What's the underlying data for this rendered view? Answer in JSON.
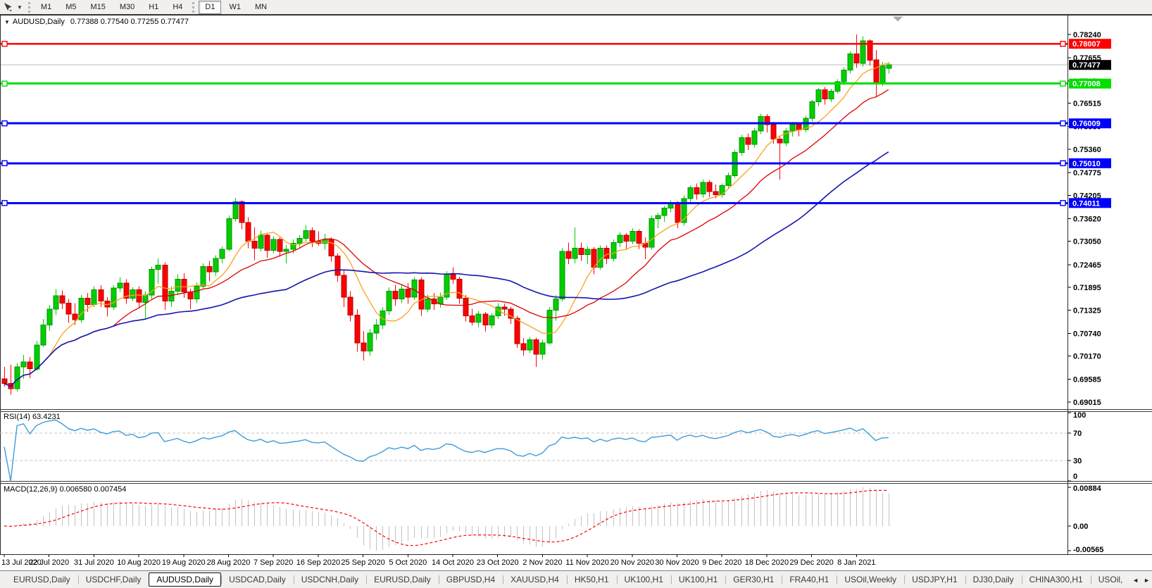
{
  "toolbar": {
    "tool_icon": "cursor-arrow",
    "dropdown_caret_icon": "▼",
    "timeframes": [
      "M1",
      "M5",
      "M15",
      "M30",
      "H1",
      "H4",
      "D1",
      "W1",
      "MN"
    ],
    "active_timeframe": "D1"
  },
  "chart_header": {
    "collapse_caret_icon": "▼",
    "symbol": "AUDUSD,Daily",
    "open": "0.77388",
    "high": "0.77540",
    "low": "0.77255",
    "close": "0.77477"
  },
  "price_axis": {
    "ticks": [
      "0.78240",
      "0.77655",
      "0.77070",
      "0.76515",
      "0.75930",
      "0.75360",
      "0.74775",
      "0.74205",
      "0.73620",
      "0.73050",
      "0.72465",
      "0.71895",
      "0.71325",
      "0.70740",
      "0.70170",
      "0.69585",
      "0.69015"
    ],
    "current_price": "0.77477",
    "current_price_badge_color": "#000000"
  },
  "hlines": [
    {
      "label": "0.78007",
      "value": 0.78007,
      "color": "#FF0000",
      "width": 2.5
    },
    {
      "label": "0.77008",
      "value": 0.77008,
      "color": "#00DF00",
      "width": 3
    },
    {
      "label": "0.76009",
      "value": 0.76009,
      "color": "#0000FF",
      "width": 3
    },
    {
      "label": "0.75010",
      "value": 0.7501,
      "color": "#0000FF",
      "width": 3
    },
    {
      "label": "0.74011",
      "value": 0.74011,
      "color": "#0000FF",
      "width": 3
    }
  ],
  "rsi_panel": {
    "name": "RSI(14)",
    "value": "63.4231",
    "line_color": "#3E9BDB",
    "levels": [
      70,
      30
    ],
    "axis_ticks": [
      {
        "label": "100",
        "value": 100
      },
      {
        "label": "70",
        "value": 70
      },
      {
        "label": "30",
        "value": 30
      },
      {
        "label": "0",
        "value": 0
      }
    ]
  },
  "macd_panel": {
    "name": "MACD(12,26,9)",
    "value_main": "0.006580",
    "value_signal": "0.007454",
    "bar_color": "#C2C2C2",
    "signal_color": "#FF0000",
    "axis_ticks": [
      {
        "label": "0.00884",
        "value": 0.00884
      },
      {
        "label": "0.00",
        "value": 0
      },
      {
        "label": "-0.00565",
        "value": -0.00565
      }
    ]
  },
  "date_axis": [
    "13 Jul 2020",
    "22 Jul 2020",
    "31 Jul 2020",
    "10 Aug 2020",
    "19 Aug 2020",
    "28 Aug 2020",
    "7 Sep 2020",
    "16 Sep 2020",
    "25 Sep 2020",
    "5 Oct 2020",
    "14 Oct 2020",
    "23 Oct 2020",
    "2 Nov 2020",
    "11 Nov 2020",
    "20 Nov 2020",
    "30 Nov 2020",
    "9 Dec 2020",
    "18 Dec 2020",
    "29 Dec 2020",
    "8 Jan 2021"
  ],
  "tabs": {
    "items": [
      "EURUSD,Daily",
      "USDCHF,Daily",
      "AUDUSD,Daily",
      "USDCAD,Daily",
      "USDCNH,Daily",
      "EURUSD,Daily",
      "GBPUSD,H4",
      "XAUUSD,H4",
      "HK50,H1",
      "UK100,H1",
      "UK100,H1",
      "GER30,H1",
      "FRA40,H1",
      "USOil,Weekly",
      "USDJPY,H1",
      "DJ30,Daily",
      "CHINA300,H1",
      "USOil,"
    ],
    "active_index": 2,
    "scroll_left_icon": "◄",
    "scroll_right_icon": "►"
  },
  "chart_data": {
    "type": "candlestick",
    "title": "AUDUSD,Daily",
    "symbol": "AUDUSD",
    "timeframe": "Daily",
    "up_color": "#00CE00",
    "down_color": "#FF0000",
    "date_tick_step": 7,
    "ylim": [
      0.69015,
      0.7824
    ],
    "moving_averages": [
      {
        "name": "fast",
        "window": 8,
        "color": "#F9A21B"
      },
      {
        "name": "medium",
        "window": 18,
        "color": "#DD0000"
      },
      {
        "name": "slow",
        "window": 45,
        "color": "#1414AE"
      }
    ],
    "indicators": {
      "rsi_period": 14,
      "macd_params": [
        12,
        26,
        9
      ]
    },
    "candles": [
      [
        0.696,
        0.699,
        0.694,
        0.6948
      ],
      [
        0.6948,
        0.6995,
        0.692,
        0.6935
      ],
      [
        0.6935,
        0.7,
        0.6928,
        0.699
      ],
      [
        0.699,
        0.702,
        0.696,
        0.7002
      ],
      [
        0.7002,
        0.7015,
        0.6962,
        0.6985
      ],
      [
        0.6985,
        0.7055,
        0.698,
        0.7045
      ],
      [
        0.7045,
        0.711,
        0.704,
        0.7095
      ],
      [
        0.7095,
        0.7145,
        0.708,
        0.7135
      ],
      [
        0.7135,
        0.7185,
        0.712,
        0.7168
      ],
      [
        0.7168,
        0.7182,
        0.7135,
        0.715
      ],
      [
        0.715,
        0.716,
        0.71,
        0.7122
      ],
      [
        0.7122,
        0.715,
        0.7095,
        0.7108
      ],
      [
        0.7108,
        0.717,
        0.71,
        0.7162
      ],
      [
        0.7162,
        0.7175,
        0.7128,
        0.7146
      ],
      [
        0.7146,
        0.7192,
        0.714,
        0.7183
      ],
      [
        0.7183,
        0.7195,
        0.714,
        0.7155
      ],
      [
        0.7155,
        0.7165,
        0.7116,
        0.714
      ],
      [
        0.714,
        0.7195,
        0.7133,
        0.7188
      ],
      [
        0.7188,
        0.7215,
        0.7178,
        0.72
      ],
      [
        0.72,
        0.721,
        0.7148,
        0.7162
      ],
      [
        0.7162,
        0.719,
        0.7155,
        0.7183
      ],
      [
        0.7183,
        0.7192,
        0.7138,
        0.7152
      ],
      [
        0.7152,
        0.718,
        0.7108,
        0.717
      ],
      [
        0.717,
        0.7242,
        0.716,
        0.7235
      ],
      [
        0.7235,
        0.7262,
        0.7198,
        0.7245
      ],
      [
        0.7245,
        0.7252,
        0.7133,
        0.7155
      ],
      [
        0.7155,
        0.7192,
        0.714,
        0.718
      ],
      [
        0.718,
        0.7222,
        0.717,
        0.721
      ],
      [
        0.721,
        0.7225,
        0.7163,
        0.7178
      ],
      [
        0.7178,
        0.7186,
        0.7135,
        0.716
      ],
      [
        0.716,
        0.7202,
        0.715,
        0.7192
      ],
      [
        0.7192,
        0.725,
        0.7185,
        0.7242
      ],
      [
        0.7242,
        0.7256,
        0.7205,
        0.7228
      ],
      [
        0.7228,
        0.727,
        0.7218,
        0.7262
      ],
      [
        0.7262,
        0.7292,
        0.725,
        0.7285
      ],
      [
        0.7285,
        0.737,
        0.728,
        0.7362
      ],
      [
        0.7362,
        0.7414,
        0.7355,
        0.7404
      ],
      [
        0.7404,
        0.7408,
        0.7335,
        0.7352
      ],
      [
        0.7352,
        0.7365,
        0.7288,
        0.7305
      ],
      [
        0.7305,
        0.734,
        0.7258,
        0.7288
      ],
      [
        0.7288,
        0.7332,
        0.728,
        0.732
      ],
      [
        0.732,
        0.7325,
        0.7264,
        0.7282
      ],
      [
        0.7282,
        0.7318,
        0.7275,
        0.731
      ],
      [
        0.731,
        0.7315,
        0.7266,
        0.728
      ],
      [
        0.728,
        0.7296,
        0.725,
        0.7285
      ],
      [
        0.7285,
        0.731,
        0.7274,
        0.73
      ],
      [
        0.73,
        0.732,
        0.7288,
        0.7312
      ],
      [
        0.7312,
        0.7345,
        0.7304,
        0.7332
      ],
      [
        0.7332,
        0.734,
        0.729,
        0.7305
      ],
      [
        0.7305,
        0.733,
        0.7294,
        0.73
      ],
      [
        0.73,
        0.7324,
        0.7284,
        0.731
      ],
      [
        0.731,
        0.7315,
        0.7254,
        0.7268
      ],
      [
        0.7268,
        0.7275,
        0.7204,
        0.722
      ],
      [
        0.722,
        0.7235,
        0.714,
        0.7165
      ],
      [
        0.7165,
        0.718,
        0.7104,
        0.712
      ],
      [
        0.712,
        0.7135,
        0.7028,
        0.705
      ],
      [
        0.705,
        0.708,
        0.7006,
        0.703
      ],
      [
        0.703,
        0.7085,
        0.7018,
        0.7075
      ],
      [
        0.7075,
        0.711,
        0.7058,
        0.7095
      ],
      [
        0.7095,
        0.714,
        0.7084,
        0.713
      ],
      [
        0.713,
        0.719,
        0.712,
        0.718
      ],
      [
        0.718,
        0.7196,
        0.7144,
        0.716
      ],
      [
        0.716,
        0.7195,
        0.715,
        0.7185
      ],
      [
        0.7185,
        0.72,
        0.7148,
        0.7165
      ],
      [
        0.7165,
        0.7215,
        0.7158,
        0.7208
      ],
      [
        0.7208,
        0.7215,
        0.7118,
        0.7135
      ],
      [
        0.7135,
        0.7172,
        0.7128,
        0.716
      ],
      [
        0.716,
        0.7175,
        0.7133,
        0.7148
      ],
      [
        0.7148,
        0.7176,
        0.7138,
        0.7165
      ],
      [
        0.7165,
        0.723,
        0.7158,
        0.7222
      ],
      [
        0.7222,
        0.724,
        0.7198,
        0.721
      ],
      [
        0.721,
        0.7216,
        0.7148,
        0.7162
      ],
      [
        0.7162,
        0.717,
        0.7104,
        0.7118
      ],
      [
        0.7118,
        0.7136,
        0.7094,
        0.7102
      ],
      [
        0.7102,
        0.713,
        0.709,
        0.7122
      ],
      [
        0.7122,
        0.7128,
        0.7078,
        0.7095
      ],
      [
        0.7095,
        0.7125,
        0.7086,
        0.7118
      ],
      [
        0.7118,
        0.715,
        0.711,
        0.714
      ],
      [
        0.714,
        0.7149,
        0.7118,
        0.7135
      ],
      [
        0.7135,
        0.7141,
        0.7098,
        0.7112
      ],
      [
        0.7112,
        0.7118,
        0.7038,
        0.7048
      ],
      [
        0.7048,
        0.7062,
        0.7018,
        0.7032
      ],
      [
        0.7032,
        0.7065,
        0.7024,
        0.7058
      ],
      [
        0.7058,
        0.7063,
        0.699,
        0.7022
      ],
      [
        0.7022,
        0.7058,
        0.7008,
        0.705
      ],
      [
        0.705,
        0.714,
        0.7046,
        0.7132
      ],
      [
        0.7132,
        0.717,
        0.7106,
        0.716
      ],
      [
        0.716,
        0.7288,
        0.7154,
        0.728
      ],
      [
        0.728,
        0.7302,
        0.7248,
        0.7262
      ],
      [
        0.7262,
        0.734,
        0.725,
        0.7288
      ],
      [
        0.7288,
        0.7302,
        0.7256,
        0.7272
      ],
      [
        0.7272,
        0.7292,
        0.7248,
        0.7285
      ],
      [
        0.7285,
        0.729,
        0.7222,
        0.724
      ],
      [
        0.724,
        0.7295,
        0.7234,
        0.7288
      ],
      [
        0.7288,
        0.7295,
        0.7248,
        0.7262
      ],
      [
        0.7262,
        0.731,
        0.7254,
        0.7302
      ],
      [
        0.7302,
        0.7328,
        0.729,
        0.732
      ],
      [
        0.732,
        0.7326,
        0.7284,
        0.7305
      ],
      [
        0.7305,
        0.7338,
        0.7297,
        0.733
      ],
      [
        0.733,
        0.7335,
        0.7286,
        0.73
      ],
      [
        0.73,
        0.7315,
        0.726,
        0.729
      ],
      [
        0.729,
        0.737,
        0.7284,
        0.7362
      ],
      [
        0.7362,
        0.7376,
        0.7338,
        0.737
      ],
      [
        0.737,
        0.7395,
        0.7354,
        0.7388
      ],
      [
        0.7388,
        0.7408,
        0.7378,
        0.74
      ],
      [
        0.74,
        0.7406,
        0.7338,
        0.7352
      ],
      [
        0.7352,
        0.742,
        0.7344,
        0.7412
      ],
      [
        0.7412,
        0.7445,
        0.7398,
        0.744
      ],
      [
        0.744,
        0.745,
        0.741,
        0.7424
      ],
      [
        0.7424,
        0.746,
        0.7414,
        0.7453
      ],
      [
        0.7453,
        0.7458,
        0.7416,
        0.743
      ],
      [
        0.743,
        0.7448,
        0.7413,
        0.7422
      ],
      [
        0.7422,
        0.745,
        0.7414,
        0.7445
      ],
      [
        0.7445,
        0.7478,
        0.7436,
        0.747
      ],
      [
        0.747,
        0.7535,
        0.7464,
        0.7528
      ],
      [
        0.7528,
        0.7572,
        0.752,
        0.7565
      ],
      [
        0.7565,
        0.7576,
        0.7534,
        0.7548
      ],
      [
        0.7548,
        0.759,
        0.754,
        0.7582
      ],
      [
        0.7582,
        0.7625,
        0.7574,
        0.7618
      ],
      [
        0.7618,
        0.7624,
        0.7578,
        0.7598
      ],
      [
        0.7598,
        0.7605,
        0.755,
        0.7562
      ],
      [
        0.7562,
        0.757,
        0.746,
        0.7552
      ],
      [
        0.7552,
        0.759,
        0.7544,
        0.7582
      ],
      [
        0.7582,
        0.7605,
        0.7568,
        0.7598
      ],
      [
        0.7598,
        0.7603,
        0.7569,
        0.7585
      ],
      [
        0.7585,
        0.762,
        0.7578,
        0.7614
      ],
      [
        0.7614,
        0.766,
        0.7606,
        0.7655
      ],
      [
        0.7655,
        0.769,
        0.7644,
        0.7685
      ],
      [
        0.7685,
        0.7692,
        0.7648,
        0.7662
      ],
      [
        0.7662,
        0.7688,
        0.7654,
        0.7682
      ],
      [
        0.7682,
        0.7712,
        0.7676,
        0.7706
      ],
      [
        0.7706,
        0.7742,
        0.7698,
        0.7735
      ],
      [
        0.7735,
        0.7782,
        0.7726,
        0.7775
      ],
      [
        0.7775,
        0.7824,
        0.774,
        0.7752
      ],
      [
        0.7752,
        0.782,
        0.7744,
        0.7808
      ],
      [
        0.7808,
        0.7812,
        0.7746,
        0.776
      ],
      [
        0.776,
        0.7785,
        0.7666,
        0.77
      ],
      [
        0.77,
        0.7755,
        0.7694,
        0.7745
      ],
      [
        0.77388,
        0.7754,
        0.77255,
        0.77477
      ]
    ]
  }
}
